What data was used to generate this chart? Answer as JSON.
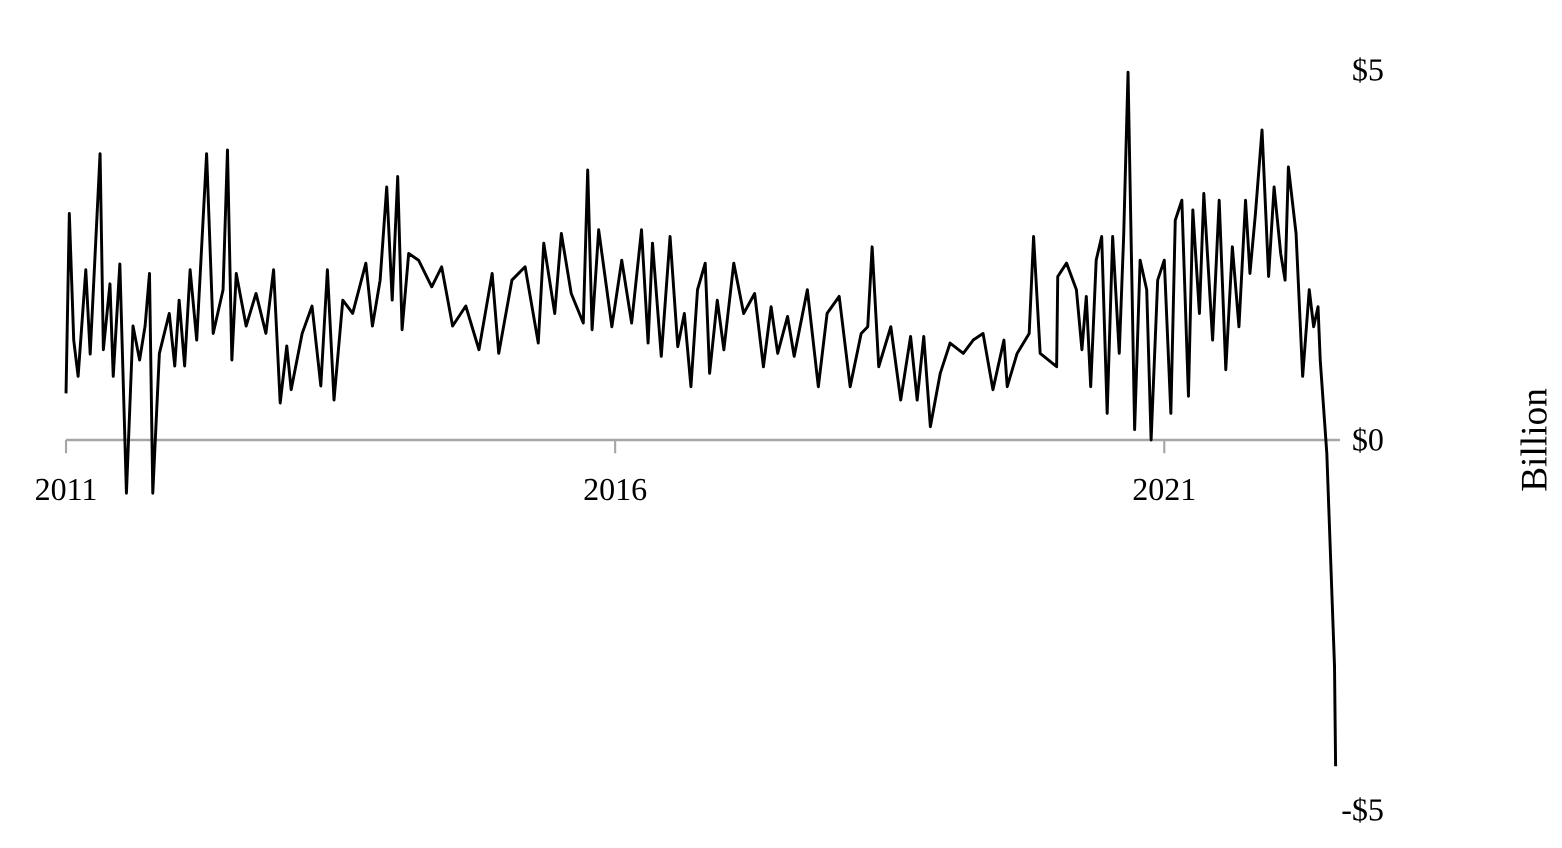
{
  "chart_data": {
    "type": "line",
    "ylabel": "Billion",
    "color": "#000000",
    "xlim": [
      2011,
      2022.6
    ],
    "xticks": [
      2011,
      2016,
      2021
    ],
    "ylim": [
      -5,
      5
    ],
    "yticks": [
      {
        "value": 5,
        "label": "$5"
      },
      {
        "value": 0,
        "label": "$0"
      },
      {
        "value": -5,
        "label": "-$5"
      }
    ],
    "x": [
      2011.0,
      2011.03,
      2011.07,
      2011.11,
      2011.18,
      2011.22,
      2011.31,
      2011.34,
      2011.4,
      2011.43,
      2011.49,
      2011.55,
      2011.61,
      2011.67,
      2011.72,
      2011.76,
      2011.79,
      2011.85,
      2011.94,
      2011.99,
      2012.03,
      2012.08,
      2012.13,
      2012.19,
      2012.28,
      2012.34,
      2012.43,
      2012.47,
      2012.51,
      2012.55,
      2012.64,
      2012.73,
      2012.82,
      2012.89,
      2012.95,
      2013.01,
      2013.05,
      2013.15,
      2013.24,
      2013.32,
      2013.38,
      2013.44,
      2013.52,
      2013.61,
      2013.73,
      2013.79,
      2013.86,
      2013.92,
      2013.97,
      2014.02,
      2014.06,
      2014.12,
      2014.21,
      2014.33,
      2014.42,
      2014.52,
      2014.64,
      2014.76,
      2014.88,
      2014.94,
      2015.06,
      2015.18,
      2015.3,
      2015.35,
      2015.45,
      2015.51,
      2015.6,
      2015.71,
      2015.75,
      2015.79,
      2015.85,
      2015.97,
      2016.06,
      2016.15,
      2016.24,
      2016.3,
      2016.34,
      2016.42,
      2016.5,
      2016.57,
      2016.63,
      2016.69,
      2016.75,
      2016.82,
      2016.86,
      2016.93,
      2016.99,
      2017.08,
      2017.17,
      2017.27,
      2017.35,
      2017.42,
      2017.48,
      2017.57,
      2017.63,
      2017.75,
      2017.85,
      2017.93,
      2018.04,
      2018.14,
      2018.24,
      2018.3,
      2018.34,
      2018.4,
      2018.51,
      2018.6,
      2018.69,
      2018.75,
      2018.81,
      2018.87,
      2018.96,
      2019.05,
      2019.17,
      2019.26,
      2019.35,
      2019.44,
      2019.54,
      2019.57,
      2019.66,
      2019.77,
      2019.81,
      2019.87,
      2020.02,
      2020.03,
      2020.11,
      2020.2,
      2020.25,
      2020.29,
      2020.33,
      2020.38,
      2020.43,
      2020.48,
      2020.53,
      2020.59,
      2020.63,
      2020.67,
      2020.73,
      2020.78,
      2020.84,
      2020.88,
      2020.94,
      2021.0,
      2021.06,
      2021.1,
      2021.16,
      2021.22,
      2021.26,
      2021.32,
      2021.36,
      2021.44,
      2021.5,
      2021.56,
      2021.62,
      2021.68,
      2021.74,
      2021.78,
      2021.83,
      2021.89,
      2021.95,
      2022.0,
      2022.06,
      2022.1,
      2022.13,
      2022.2,
      2022.26,
      2022.32,
      2022.36,
      2022.4,
      2022.42,
      2022.48,
      2022.55,
      2022.56
    ],
    "values": [
      0.63,
      3.06,
      1.35,
      0.86,
      2.3,
      1.16,
      3.87,
      1.22,
      2.11,
      0.86,
      2.38,
      -0.72,
      1.54,
      1.08,
      1.54,
      2.25,
      -0.72,
      1.17,
      1.71,
      1.0,
      1.89,
      1.0,
      2.3,
      1.35,
      3.87,
      1.44,
      2.03,
      3.92,
      1.08,
      2.25,
      1.54,
      1.98,
      1.44,
      2.3,
      0.5,
      1.27,
      0.68,
      1.44,
      1.81,
      0.73,
      2.3,
      0.54,
      1.89,
      1.71,
      2.39,
      1.54,
      2.16,
      3.42,
      1.89,
      3.56,
      1.49,
      2.52,
      2.43,
      2.07,
      2.34,
      1.54,
      1.81,
      1.22,
      2.25,
      1.17,
      2.16,
      2.34,
      1.31,
      2.66,
      1.71,
      2.79,
      1.98,
      1.58,
      3.65,
      1.49,
      2.84,
      1.53,
      2.43,
      1.58,
      2.84,
      1.31,
      2.66,
      1.13,
      2.75,
      1.26,
      1.71,
      0.72,
      2.03,
      2.39,
      0.9,
      1.89,
      1.22,
      2.39,
      1.71,
      1.98,
      0.99,
      1.8,
      1.17,
      1.67,
      1.13,
      2.03,
      0.72,
      1.71,
      1.94,
      0.72,
      1.44,
      1.53,
      2.61,
      0.99,
      1.53,
      0.54,
      1.4,
      0.54,
      1.4,
      0.18,
      0.9,
      1.31,
      1.17,
      1.35,
      1.44,
      0.68,
      1.35,
      0.72,
      1.17,
      1.44,
      2.75,
      1.17,
      0.99,
      2.21,
      2.39,
      2.03,
      1.22,
      1.94,
      0.72,
      2.43,
      2.75,
      0.36,
      2.75,
      1.17,
      2.75,
      4.97,
      0.14,
      2.43,
      2.03,
      0.0,
      2.16,
      2.43,
      0.36,
      2.97,
      3.24,
      0.59,
      3.11,
      1.71,
      3.33,
      1.35,
      3.24,
      0.95,
      2.61,
      1.53,
      3.24,
      2.25,
      3.06,
      4.19,
      2.21,
      3.42,
      2.52,
      2.16,
      3.69,
      2.79,
      0.86,
      2.03,
      1.53,
      1.8,
      1.08,
      -0.18,
      -3.06,
      -4.41
    ]
  }
}
